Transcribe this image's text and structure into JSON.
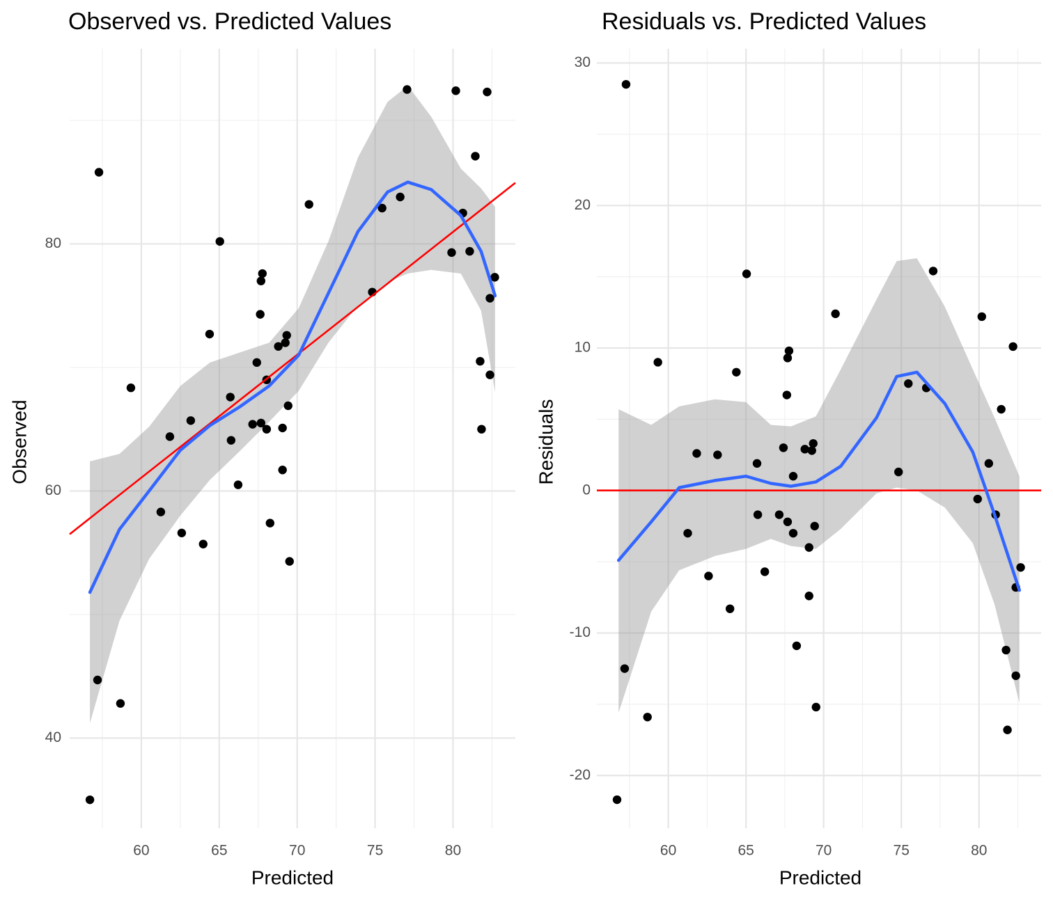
{
  "chart_data": [
    {
      "type": "scatter",
      "title": "Observed vs. Predicted Values",
      "x_label": "Predicted",
      "y_label": "Observed",
      "xlim": [
        55.4,
        84.0
      ],
      "ylim": [
        32.7,
        95.8
      ],
      "xticks": [
        60,
        65,
        70,
        75,
        80
      ],
      "xminor": [
        57.5,
        62.5,
        67.5,
        72.5,
        77.5,
        82.5
      ],
      "yticks": [
        40,
        60,
        80
      ],
      "yminor": [
        50,
        70,
        90
      ],
      "grid": true,
      "points": {
        "color": "#000000",
        "x": [
          56.7,
          57.19,
          57.28,
          58.66,
          59.33,
          61.25,
          61.83,
          62.59,
          63.17,
          63.97,
          64.38,
          65.04,
          65.71,
          65.76,
          66.21,
          67.14,
          67.41,
          67.63,
          67.68,
          67.68,
          67.77,
          68.04,
          68.04,
          68.26,
          68.79,
          69.06,
          69.06,
          69.24,
          69.33,
          69.42,
          69.51,
          70.76,
          74.82,
          75.45,
          76.61,
          77.05,
          79.91,
          80.18,
          80.63,
          81.07,
          81.43,
          81.74,
          81.83,
          82.19,
          82.37,
          82.37,
          82.68
        ],
        "values": [
          35.0,
          44.7,
          85.8,
          42.8,
          68.35,
          58.3,
          64.4,
          56.6,
          65.7,
          55.7,
          72.7,
          80.2,
          67.6,
          64.1,
          60.5,
          65.4,
          70.4,
          74.3,
          77.0,
          65.5,
          77.6,
          69.0,
          65.0,
          57.4,
          71.7,
          65.1,
          61.7,
          72.0,
          72.6,
          66.9,
          54.3,
          83.2,
          76.1,
          82.9,
          83.8,
          92.5,
          79.3,
          92.4,
          82.5,
          79.4,
          87.1,
          70.5,
          65.0,
          92.3,
          75.6,
          69.4,
          77.3
        ]
      },
      "fit": {
        "color": "#3366ff",
        "fill": "#999999",
        "x": [
          56.7,
          58.6,
          60.5,
          62.5,
          64.4,
          66.3,
          68.2,
          70.1,
          72.0,
          73.9,
          75.8,
          77.1,
          78.6,
          80.5,
          81.8,
          82.7
        ],
        "values": [
          51.8,
          56.9,
          60.0,
          63.3,
          65.3,
          66.8,
          68.5,
          71.0,
          76.0,
          81.0,
          84.2,
          85.0,
          84.4,
          82.3,
          79.4,
          75.8
        ],
        "lower": [
          41.2,
          49.5,
          54.5,
          58.0,
          60.9,
          63.2,
          65.6,
          68.1,
          72.0,
          75.0,
          76.9,
          77.6,
          77.9,
          77.6,
          74.6,
          68.0
        ],
        "upper": [
          62.4,
          63.0,
          65.2,
          68.5,
          70.4,
          71.2,
          72.0,
          74.8,
          80.2,
          87.0,
          91.5,
          92.8,
          90.3,
          86.1,
          84.5,
          83.0
        ]
      },
      "ref_line": {
        "color": "#ff0000",
        "x": [
          55.4,
          84.0
        ],
        "values": [
          56.5,
          84.95
        ]
      }
    },
    {
      "type": "scatter",
      "title": "Residuals vs. Predicted Values",
      "x_label": "Predicted",
      "y_label": "Residuals",
      "xlim": [
        55.4,
        84.0
      ],
      "ylim": [
        -23.7,
        31.0
      ],
      "xticks": [
        60,
        65,
        70,
        75,
        80
      ],
      "xminor": [
        57.5,
        62.5,
        67.5,
        72.5,
        77.5,
        82.5
      ],
      "yticks": [
        -20,
        -10,
        0,
        10,
        20,
        30
      ],
      "yminor": [
        -15,
        -5,
        5,
        15,
        25
      ],
      "grid": true,
      "points": {
        "color": "#000000",
        "x": [
          56.7,
          57.19,
          57.28,
          58.66,
          59.33,
          61.25,
          61.83,
          62.59,
          63.17,
          63.97,
          64.38,
          65.04,
          65.71,
          65.76,
          66.21,
          67.14,
          67.41,
          67.63,
          67.68,
          67.68,
          67.77,
          68.04,
          68.04,
          68.26,
          68.79,
          69.06,
          69.06,
          69.24,
          69.33,
          69.42,
          69.51,
          70.76,
          74.82,
          75.45,
          76.61,
          77.05,
          79.91,
          80.18,
          80.63,
          81.07,
          81.43,
          81.74,
          81.83,
          82.19,
          82.37,
          82.37,
          82.68
        ],
        "values": [
          -21.7,
          -12.5,
          28.5,
          -15.9,
          9.0,
          -3.0,
          2.6,
          -6.0,
          2.5,
          -8.3,
          8.3,
          15.2,
          1.9,
          -1.7,
          -5.7,
          -1.7,
          3.0,
          6.7,
          9.3,
          -2.2,
          9.8,
          1.0,
          -3.0,
          -10.9,
          2.9,
          -4.0,
          -7.4,
          2.8,
          3.3,
          -2.5,
          -15.2,
          12.4,
          1.3,
          7.5,
          7.2,
          15.4,
          -0.6,
          12.2,
          1.9,
          -1.7,
          5.7,
          -11.2,
          -16.8,
          10.1,
          -6.8,
          -13.0,
          -5.4
        ]
      },
      "fit": {
        "color": "#3366ff",
        "fill": "#999999",
        "x": [
          56.8,
          58.9,
          60.7,
          63.0,
          65.0,
          66.6,
          67.9,
          69.5,
          71.1,
          73.4,
          74.7,
          76.0,
          77.8,
          79.6,
          81.0,
          82.6
        ],
        "values": [
          -4.9,
          -2.2,
          0.2,
          0.7,
          1.0,
          0.5,
          0.3,
          0.6,
          1.7,
          5.1,
          8.0,
          8.3,
          6.1,
          2.7,
          -1.7,
          -7.0
        ],
        "lower": [
          -15.6,
          -8.5,
          -5.6,
          -4.6,
          -4.1,
          -3.4,
          -3.9,
          -4.1,
          -2.7,
          -0.2,
          0.2,
          0.0,
          -1.2,
          -3.7,
          -8.0,
          -14.9
        ],
        "upper": [
          5.7,
          4.6,
          5.9,
          6.4,
          6.2,
          4.6,
          4.5,
          5.2,
          8.5,
          13.4,
          16.1,
          16.3,
          12.9,
          8.5,
          5.1,
          1.0
        ]
      },
      "ref_line": {
        "color": "#ff0000",
        "x": [
          55.4,
          84.0
        ],
        "values": [
          0,
          0
        ]
      }
    }
  ]
}
